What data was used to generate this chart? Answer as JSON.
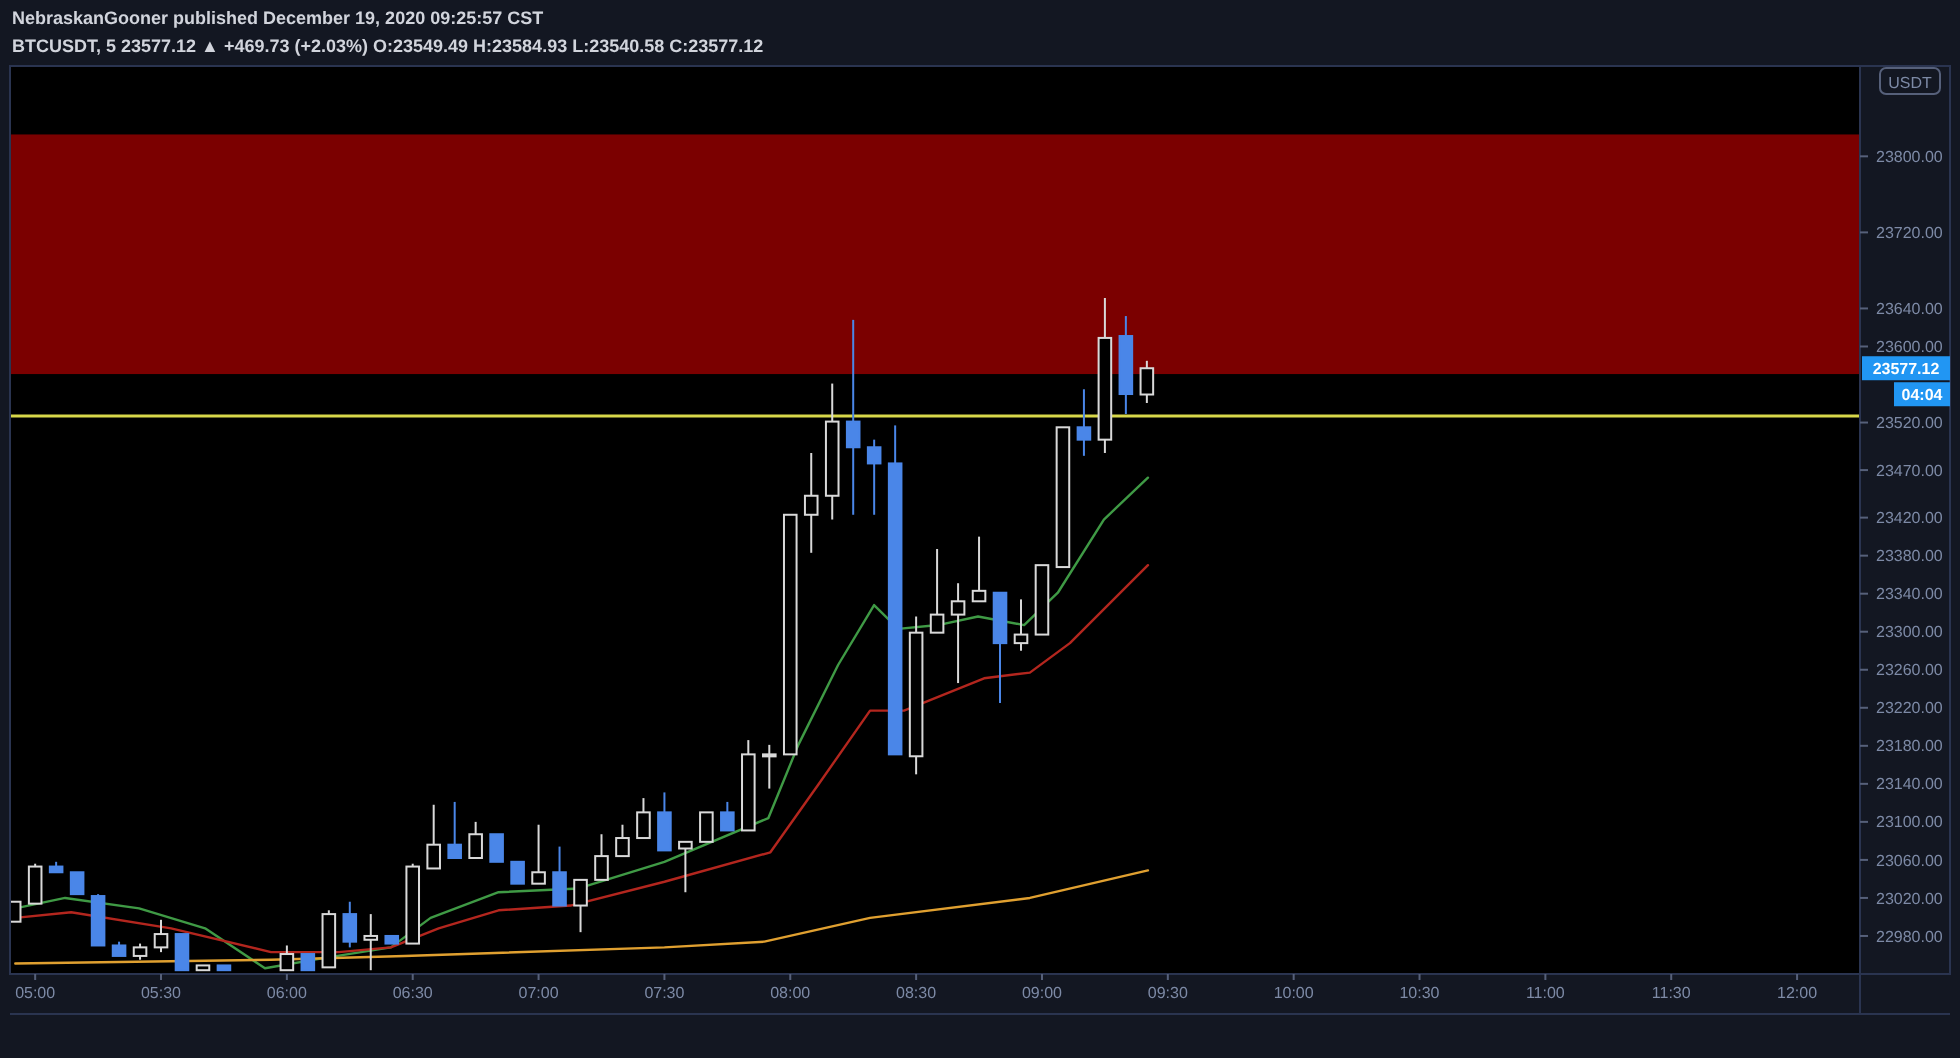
{
  "chart_data": {
    "type": "candlestick",
    "title": "NebraskanGooner published December 19, 2020 09:25:57 CST",
    "subtitle": "BTCUSDT, 5  23577.12 ▲ +469.73 (+2.03%) O:23549.49 H:23584.93 L:23540.58 C:23577.12",
    "ylabel": "USDT",
    "xlim": [
      4.9,
      12.25
    ],
    "ylim": [
      22940,
      23895
    ],
    "xticks": [
      {
        "value": 5,
        "label": "05:00"
      },
      {
        "value": 5.5,
        "label": "05:30"
      },
      {
        "value": 6,
        "label": "06:00"
      },
      {
        "value": 6.5,
        "label": "06:30"
      },
      {
        "value": 7,
        "label": "07:00"
      },
      {
        "value": 7.5,
        "label": "07:30"
      },
      {
        "value": 8,
        "label": "08:00"
      },
      {
        "value": 8.5,
        "label": "08:30"
      },
      {
        "value": 9,
        "label": "09:00"
      },
      {
        "value": 9.5,
        "label": "09:30"
      },
      {
        "value": 10,
        "label": "10:00"
      },
      {
        "value": 10.5,
        "label": "10:30"
      },
      {
        "value": 11,
        "label": "11:00"
      },
      {
        "value": 11.5,
        "label": "11:30"
      },
      {
        "value": 12,
        "label": "12:00"
      }
    ],
    "yticks": [
      {
        "value": 22980,
        "label": "22980.00"
      },
      {
        "value": 23020,
        "label": "23020.00"
      },
      {
        "value": 23060,
        "label": "23060.00"
      },
      {
        "value": 23100,
        "label": "23100.00"
      },
      {
        "value": 23140,
        "label": "23140.00"
      },
      {
        "value": 23180,
        "label": "23180.00"
      },
      {
        "value": 23220,
        "label": "23220.00"
      },
      {
        "value": 23260,
        "label": "23260.00"
      },
      {
        "value": 23300,
        "label": "23300.00"
      },
      {
        "value": 23340,
        "label": "23340.00"
      },
      {
        "value": 23380,
        "label": "23380.00"
      },
      {
        "value": 23420,
        "label": "23420.00"
      },
      {
        "value": 23470,
        "label": "23470.00"
      },
      {
        "value": 23520,
        "label": "23520.00"
      },
      {
        "value": 23600,
        "label": "23600.00"
      },
      {
        "value": 23640,
        "label": "23640.00"
      },
      {
        "value": 23720,
        "label": "23720.00"
      },
      {
        "value": 23800,
        "label": "23800.00"
      }
    ],
    "bands": [
      {
        "axis": "y",
        "from": 23571,
        "to": 23823,
        "color": "#7b0000"
      }
    ],
    "ref_lines": [
      {
        "axis": "y",
        "value": 23527,
        "color": "#d8d84a"
      }
    ],
    "annotations": [
      "23577.12",
      "04:04"
    ],
    "series": [
      {
        "colors": [
          "#d9d9d9",
          "#d9d9d9",
          "#4a86e8",
          "#4a86e8",
          "#4a86e8",
          "#4a86e8",
          "#d9d9d9",
          "#d9d9d9",
          "#4a86e8",
          "#d9d9d9",
          "#4a86e8",
          "#d9d9d9",
          "#4a86e8",
          "#d9d9d9",
          "#4a86e8",
          "#d9d9d9",
          "#4a86e8",
          "#d9d9d9",
          "#d9d9d9",
          "#4a86e8",
          "#d9d9d9",
          "#4a86e8",
          "#4a86e8",
          "#d9d9d9",
          "#4a86e8",
          "#d9d9d9",
          "#d9d9d9",
          "#d9d9d9",
          "#d9d9d9",
          "#4a86e8",
          "#d9d9d9",
          "#d9d9d9",
          "#4a86e8",
          "#d9d9d9",
          "#d9d9d9",
          "#d9d9d9",
          "#d9d9d9",
          "#d9d9d9",
          "#4a86e8",
          "#4a86e8",
          "#4a86e8",
          "#d9d9d9",
          "#d9d9d9",
          "#d9d9d9",
          "#d9d9d9",
          "#4a86e8",
          "#d9d9d9",
          "#d9d9d9",
          "#d9d9d9",
          "#4a86e8",
          "#d9d9d9",
          "#4a86e8",
          "#d9d9d9"
        ],
        "x": [
          4.9167,
          5,
          5.0833,
          5.1667,
          5.25,
          5.3333,
          5.4167,
          5.5,
          5.5833,
          5.6667,
          5.75,
          6,
          6.0833,
          6.1667,
          6.25,
          6.3333,
          6.4167,
          6.5,
          6.5833,
          6.6667,
          6.75,
          6.8333,
          6.9167,
          7,
          7.0833,
          7.1667,
          7.25,
          7.3333,
          7.4167,
          7.5,
          7.5833,
          7.6667,
          7.75,
          7.8333,
          7.9167,
          8,
          8.0833,
          8.1667,
          8.25,
          8.3333,
          8.4167,
          8.5,
          8.5833,
          8.6667,
          8.75,
          8.8333,
          8.9167,
          9,
          9.0833,
          9.1667,
          9.25,
          9.3333,
          9.4167
        ],
        "ohlc": [
          [
            22995,
            23016,
            22995,
            23016
          ],
          [
            23014,
            23056,
            23014,
            23053
          ],
          [
            23053,
            23058,
            23047,
            23047
          ],
          [
            23047,
            23047,
            23024,
            23024
          ],
          [
            23022,
            23024,
            22970,
            22970
          ],
          [
            22970,
            22974,
            22959,
            22959
          ],
          [
            22959,
            22972,
            22955,
            22968
          ],
          [
            22968,
            22997,
            22963,
            22982
          ],
          [
            22982,
            22982,
            22944,
            22944
          ],
          [
            22944,
            22949,
            22944,
            22949
          ],
          [
            22949,
            22949,
            22944,
            22944
          ],
          [
            22944,
            22970,
            22944,
            22961
          ],
          [
            22961,
            22961,
            22944,
            22944
          ],
          [
            22947,
            23007,
            22947,
            23003
          ],
          [
            23003,
            23016,
            22968,
            22974
          ],
          [
            22976,
            23003,
            22944,
            22980
          ],
          [
            22980,
            22980,
            22972,
            22972
          ],
          [
            22972,
            23056,
            22972,
            23053
          ],
          [
            23051,
            23118,
            23051,
            23076
          ],
          [
            23076,
            23121,
            23062,
            23062
          ],
          [
            23062,
            23100,
            23062,
            23087
          ],
          [
            23087,
            23087,
            23058,
            23058
          ],
          [
            23058,
            23058,
            23035,
            23035
          ],
          [
            23035,
            23097,
            23035,
            23047
          ],
          [
            23047,
            23074,
            23012,
            23012
          ],
          [
            23012,
            23039,
            22984,
            23039
          ],
          [
            23039,
            23087,
            23039,
            23064
          ],
          [
            23064,
            23097,
            23064,
            23083
          ],
          [
            23083,
            23125,
            23083,
            23110
          ],
          [
            23110,
            23131,
            23070,
            23070
          ],
          [
            23072,
            23079,
            23026,
            23079
          ],
          [
            23079,
            23110,
            23079,
            23110
          ],
          [
            23110,
            23121,
            23091,
            23091
          ],
          [
            23091,
            23186,
            23091,
            23171
          ],
          [
            23171,
            23181,
            23135,
            23171
          ],
          [
            23171,
            23423,
            23171,
            23423
          ],
          [
            23423,
            23488,
            23383,
            23443
          ],
          [
            23443,
            23561,
            23418,
            23521
          ],
          [
            23521,
            23628,
            23423,
            23494
          ],
          [
            23494,
            23502,
            23423,
            23477
          ],
          [
            23477,
            23517,
            23171,
            23171
          ],
          [
            23169,
            23316,
            23150,
            23299
          ],
          [
            23299,
            23387,
            23299,
            23318
          ],
          [
            23318,
            23351,
            23246,
            23332
          ],
          [
            23332,
            23400,
            23332,
            23343
          ],
          [
            23341,
            23341,
            23225,
            23288
          ],
          [
            23288,
            23334,
            23280,
            23297
          ],
          [
            23297,
            23370,
            23297,
            23370
          ],
          [
            23368,
            23515,
            23368,
            23515
          ],
          [
            23515,
            23555,
            23485,
            23502
          ],
          [
            23502,
            23651,
            23488,
            23609
          ],
          [
            23611,
            23632,
            23529,
            23550
          ],
          [
            23549.49,
            23584.93,
            23540.58,
            23577.12
          ]
        ]
      },
      {
        "type": "line",
        "color": "#3f9a45",
        "x": [
          4.921,
          5.119,
          5.413,
          5.675,
          5.913,
          6.151,
          6.413,
          6.571,
          6.841,
          7.159,
          7.5,
          7.913,
          8.032,
          8.19,
          8.333,
          8.429,
          8.587,
          8.746,
          8.929,
          9.063,
          9.246,
          9.421
        ],
        "values": [
          23009,
          23020,
          23009,
          22988,
          22946,
          22957,
          22968,
          22999,
          23026,
          23030,
          23058,
          23104,
          23181,
          23265,
          23328,
          23303,
          23307,
          23316,
          23307,
          23341,
          23418,
          23462
        ]
      },
      {
        "type": "line",
        "color": "#b3261e",
        "x": [
          4.921,
          5.143,
          5.54,
          5.937,
          6.206,
          6.413,
          6.603,
          6.841,
          7.127,
          7.5,
          7.921,
          8.111,
          8.317,
          8.452,
          8.77,
          8.952,
          9.111,
          9.421
        ],
        "values": [
          22999,
          23005,
          22988,
          22963,
          22963,
          22968,
          22988,
          23007,
          23012,
          23037,
          23068,
          23139,
          23217,
          23217,
          23251,
          23257,
          23288,
          23370
        ]
      },
      {
        "type": "line",
        "color": "#e0a030",
        "x": [
          4.921,
          5.937,
          6.468,
          7.5,
          7.897,
          8.317,
          8.952,
          9.421
        ],
        "values": [
          22951,
          22955,
          22959,
          22968,
          22974,
          22999,
          23020,
          23049
        ]
      }
    ]
  }
}
